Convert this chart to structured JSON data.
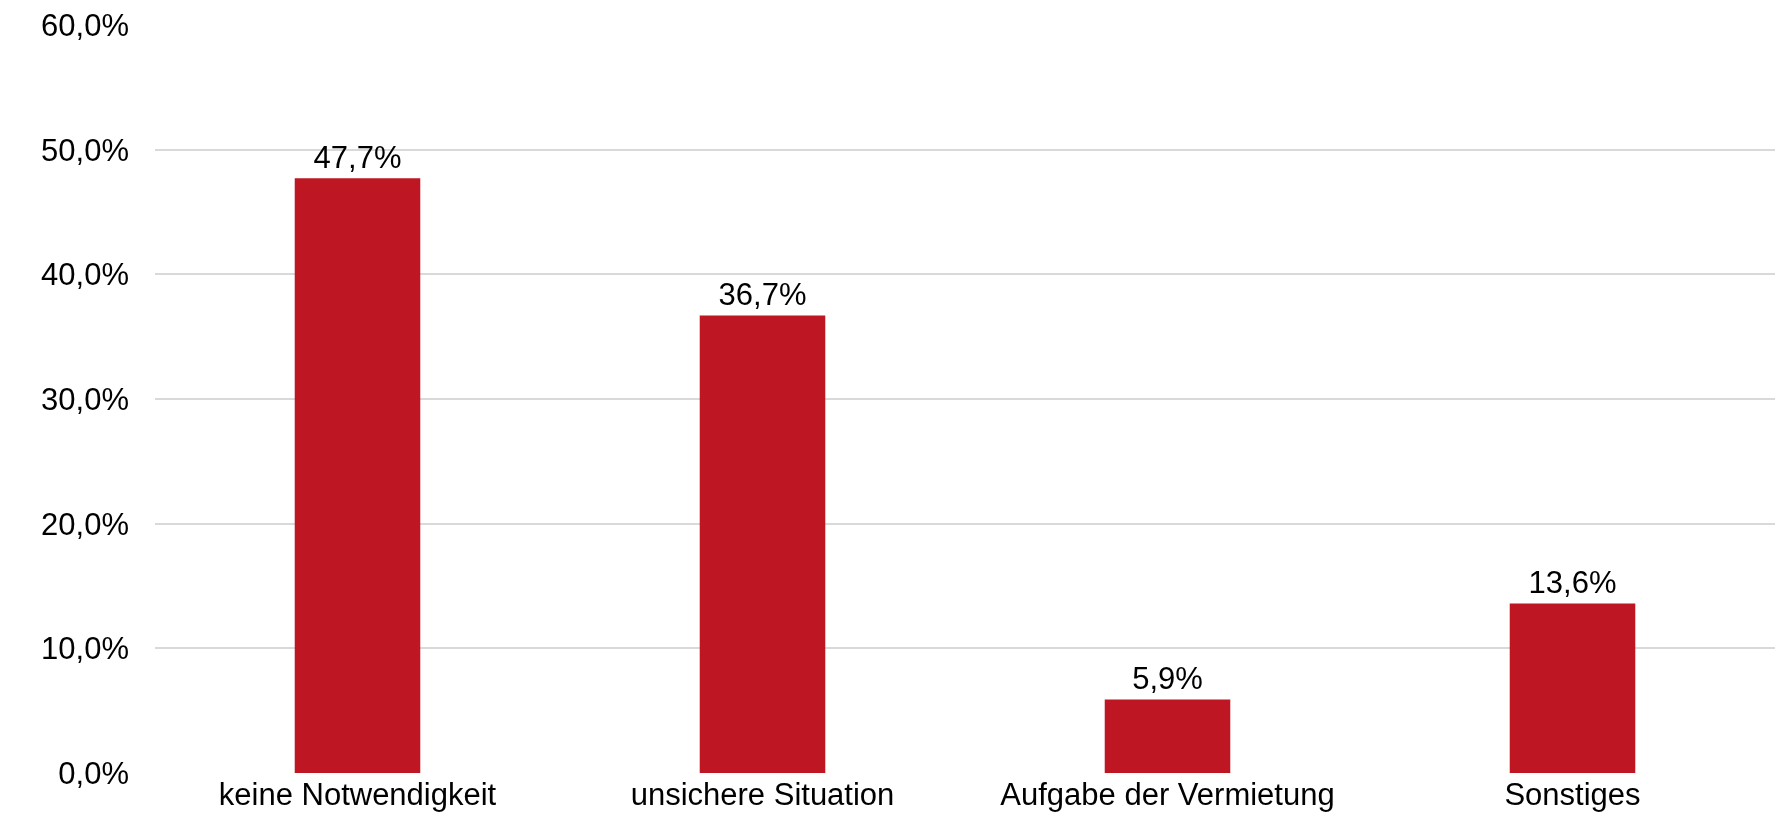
{
  "chart_data": {
    "type": "bar",
    "categories": [
      "keine Notwendigkeit",
      "unsichere Situation",
      "Aufgabe der Vermietung",
      "Sonstiges"
    ],
    "values": [
      47.7,
      36.7,
      5.9,
      13.6
    ],
    "value_labels": [
      "47,7%",
      "36,7%",
      "5,9%",
      "13,6%"
    ],
    "color": "#be1622",
    "ylim": [
      0,
      60
    ],
    "yticks": [
      {
        "value": 0,
        "label": "0,0%"
      },
      {
        "value": 10,
        "label": "10,0%"
      },
      {
        "value": 20,
        "label": "20,0%"
      },
      {
        "value": 30,
        "label": "30,0%"
      },
      {
        "value": 40,
        "label": "40,0%"
      },
      {
        "value": 50,
        "label": "50,0%"
      },
      {
        "value": 60,
        "label": "60,0%"
      }
    ],
    "grid": "y"
  }
}
